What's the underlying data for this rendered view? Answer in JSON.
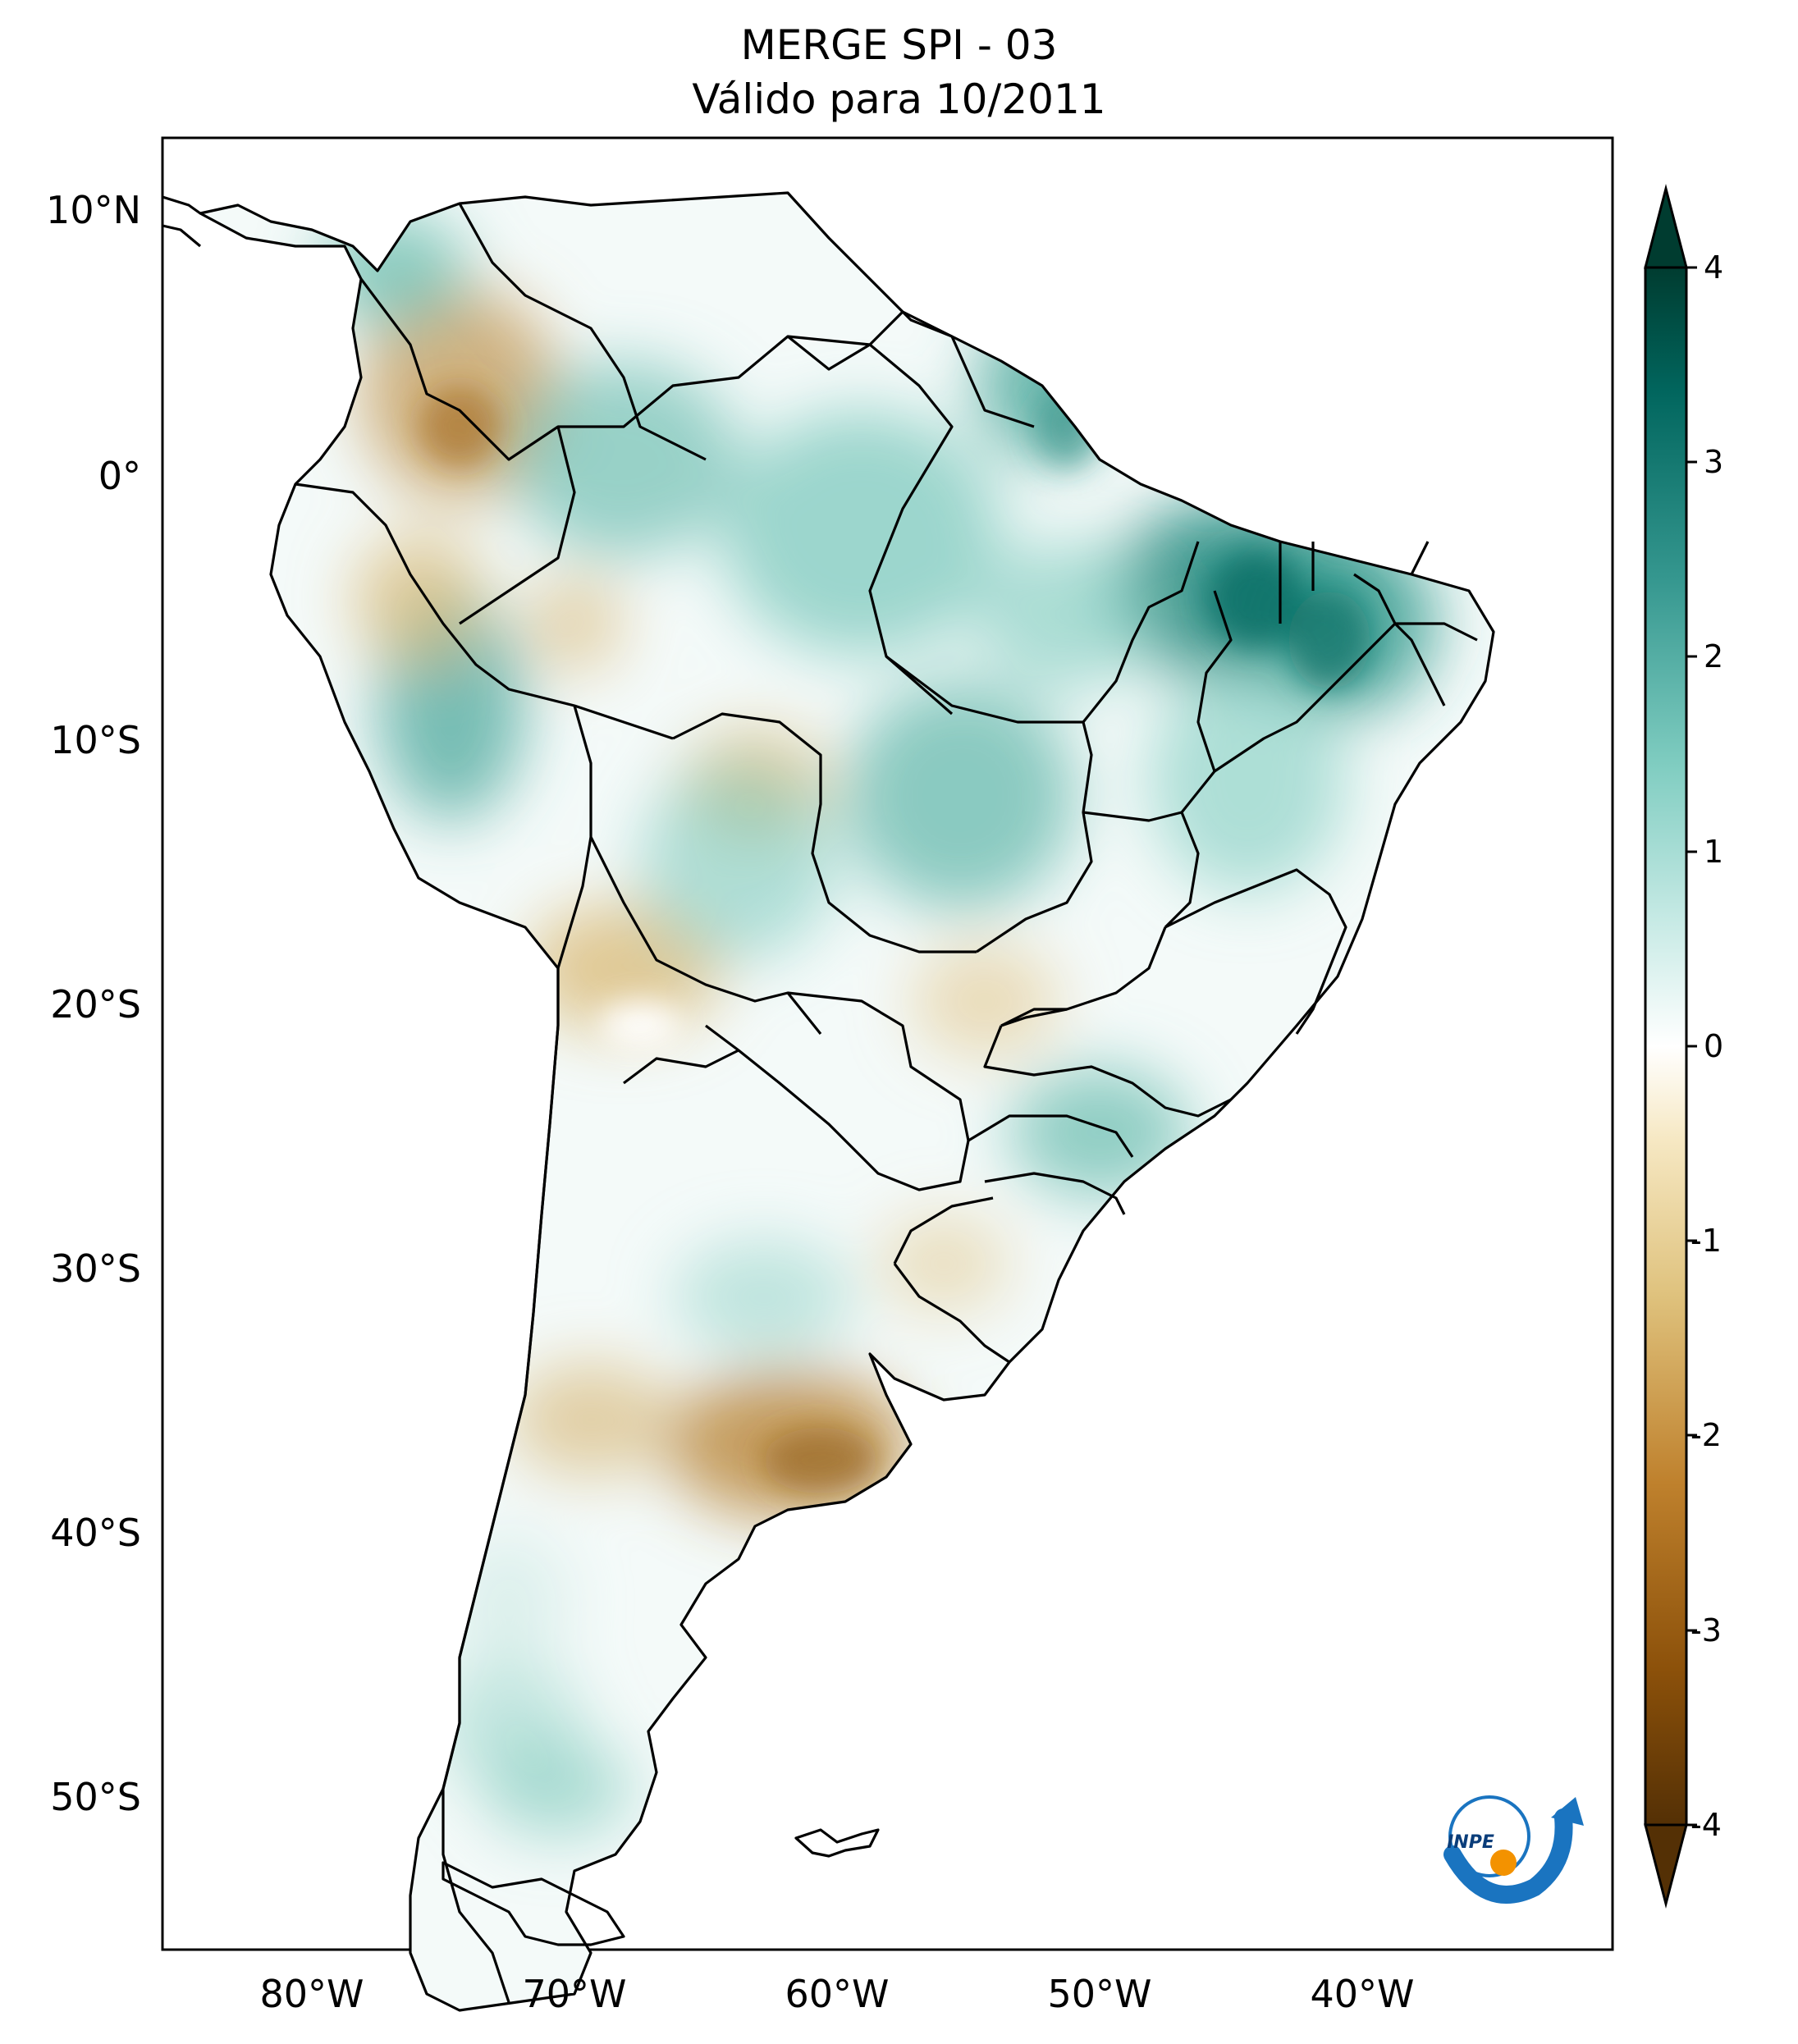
{
  "title": {
    "line1": "MERGE   SPI - 03",
    "line2": "Válido para 10/2011"
  },
  "map": {
    "region": "South America",
    "lon_range": [
      -85,
      -29
    ],
    "lat_range": [
      -56,
      13
    ],
    "lon_ticks": [
      {
        "value": -80,
        "label": "80°W"
      },
      {
        "value": -70,
        "label": "70°W"
      },
      {
        "value": -60,
        "label": "60°W"
      },
      {
        "value": -50,
        "label": "50°W"
      },
      {
        "value": -40,
        "label": "40°W"
      }
    ],
    "lat_ticks": [
      {
        "value": 10,
        "label": "10°N"
      },
      {
        "value": 0,
        "label": "0°"
      },
      {
        "value": -10,
        "label": "10°S"
      },
      {
        "value": -20,
        "label": "20°S"
      },
      {
        "value": -30,
        "label": "30°S"
      },
      {
        "value": -40,
        "label": "40°S"
      },
      {
        "value": -50,
        "label": "50°S"
      }
    ]
  },
  "colorbar": {
    "min": -4,
    "max": 4,
    "ticks": [
      "4",
      "3",
      "2",
      "1",
      "0",
      "-1",
      "-2",
      "-3",
      "-4"
    ],
    "stops": [
      "#543005",
      "#8c510a",
      "#bf812d",
      "#dfc27d",
      "#f6e8c3",
      "#ffffff",
      "#c7eae5",
      "#80cdc1",
      "#35978f",
      "#01665e",
      "#003c30"
    ]
  },
  "logo": {
    "text": "INPE",
    "colors": {
      "blue": "#1a74c0",
      "orange": "#f39200"
    }
  }
}
